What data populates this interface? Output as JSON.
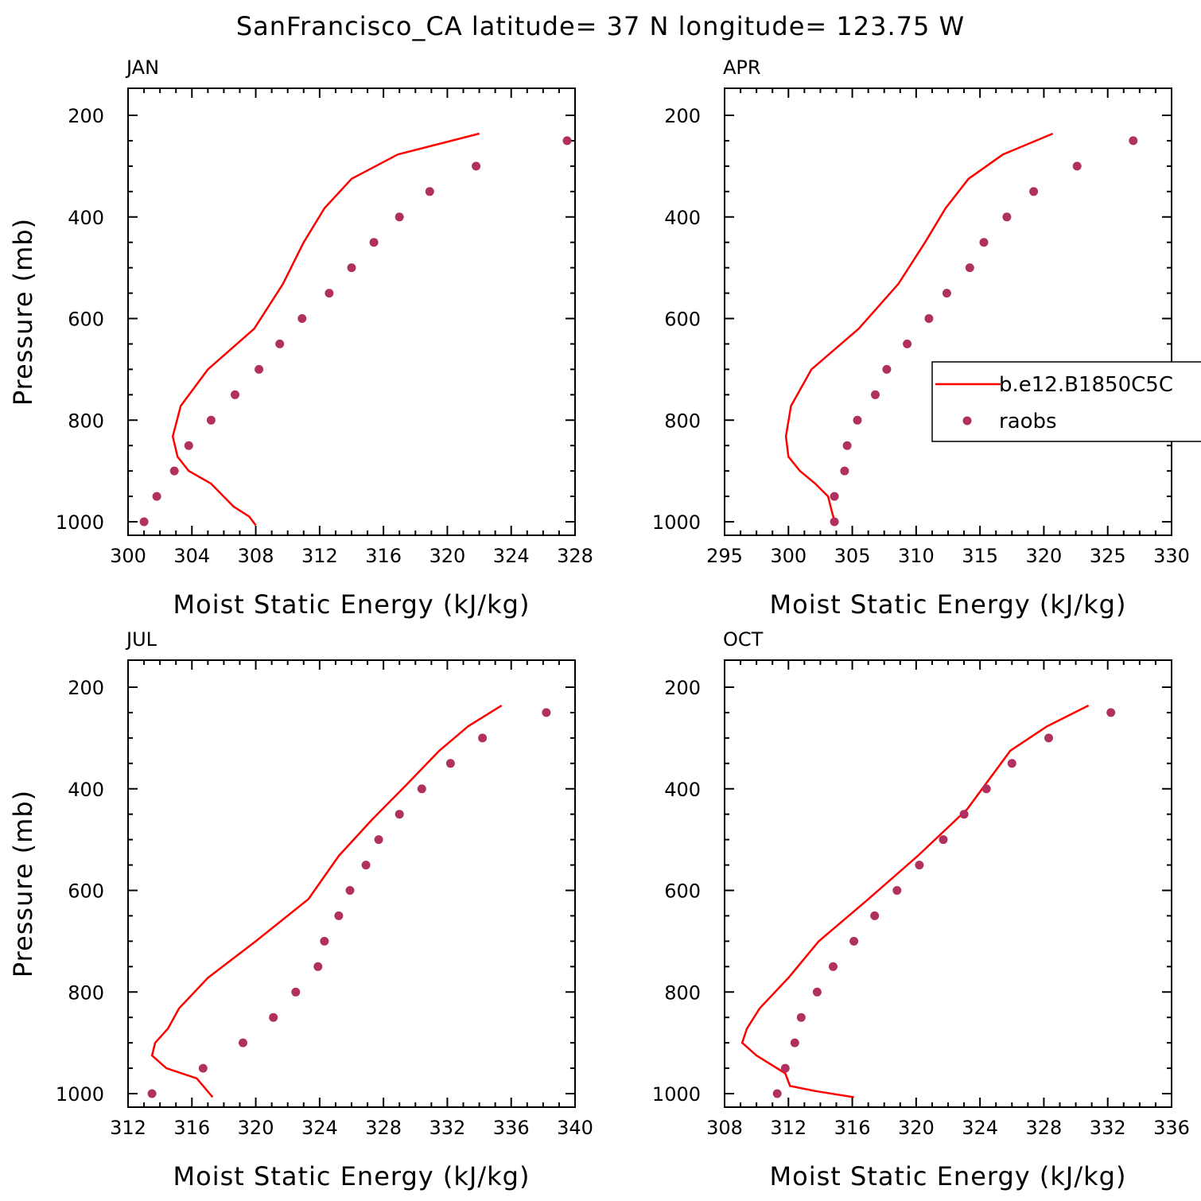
{
  "figure_title": "SanFrancisco_CA  latitude= 37 N longitude= 123.75 W",
  "colors": {
    "model_line": "#ff0000",
    "obs_marker": "#b03060",
    "axes": "#000000"
  },
  "legend": {
    "location": "inside APR panel, right side",
    "entries": [
      {
        "label": "b.e12.B1850C5C",
        "style": "line",
        "color": "#ff0000"
      },
      {
        "label": "raobs",
        "style": "marker",
        "color": "#b03060"
      }
    ]
  },
  "chart_data": [
    {
      "type": "line",
      "panel_label": "JAN",
      "xlabel": "Moist Static Energy (kJ/kg)",
      "ylabel": "Pressure (mb)",
      "xlim": [
        300,
        328
      ],
      "ylim": [
        1000,
        200
      ],
      "y_inverted": true,
      "xticks": [
        "300",
        "304",
        "308",
        "312",
        "316",
        "320",
        "324",
        "328"
      ],
      "yticks": [
        "200",
        "400",
        "600",
        "800",
        "1000"
      ],
      "series": [
        {
          "name": "b.e12.B1850C5C",
          "style": "line",
          "x": [
            322.0,
            316.9,
            314.0,
            312.3,
            311.0,
            309.7,
            307.9,
            305.0,
            303.3,
            302.8,
            303.1,
            303.8,
            305.2,
            306.6,
            307.6,
            308.0
          ],
          "y": [
            236,
            277,
            325,
            383,
            450,
            532,
            620,
            700,
            772,
            832,
            872,
            900,
            925,
            970,
            990,
            1007
          ]
        },
        {
          "name": "raobs",
          "style": "scatter",
          "x": [
            327.5,
            321.8,
            318.9,
            317.0,
            315.4,
            314.0,
            312.6,
            310.9,
            309.5,
            308.2,
            306.7,
            305.2,
            303.8,
            302.9,
            301.8,
            301.0
          ],
          "y": [
            250,
            300,
            350,
            400,
            450,
            500,
            550,
            600,
            650,
            700,
            750,
            800,
            850,
            900,
            950,
            1000
          ]
        }
      ]
    },
    {
      "type": "line",
      "panel_label": "APR",
      "xlabel": "Moist Static Energy (kJ/kg)",
      "ylabel": "",
      "xlim": [
        295,
        330
      ],
      "ylim": [
        1000,
        200
      ],
      "y_inverted": true,
      "xticks": [
        "295",
        "300",
        "305",
        "310",
        "315",
        "320",
        "325",
        "330"
      ],
      "yticks": [
        "200",
        "400",
        "600",
        "800",
        "1000"
      ],
      "series": [
        {
          "name": "b.e12.B1850C5C",
          "style": "line",
          "x": [
            320.7,
            316.8,
            314.1,
            312.3,
            310.7,
            308.6,
            305.5,
            301.8,
            300.2,
            299.8,
            300.0,
            300.9,
            302.1,
            303.1,
            303.4,
            303.7
          ],
          "y": [
            236,
            277,
            325,
            383,
            450,
            532,
            620,
            700,
            772,
            832,
            872,
            900,
            925,
            950,
            980,
            1007
          ]
        },
        {
          "name": "raobs",
          "style": "scatter",
          "x": [
            327.0,
            322.6,
            319.2,
            317.1,
            315.3,
            314.2,
            312.4,
            311.0,
            309.3,
            307.7,
            306.8,
            305.4,
            304.6,
            304.4,
            303.6,
            303.6
          ],
          "y": [
            250,
            300,
            350,
            400,
            450,
            500,
            550,
            600,
            650,
            700,
            750,
            800,
            850,
            900,
            950,
            1000
          ]
        }
      ]
    },
    {
      "type": "line",
      "panel_label": "JUL",
      "xlabel": "Moist Static Energy (kJ/kg)",
      "ylabel": "Pressure (mb)",
      "xlim": [
        312,
        340
      ],
      "ylim": [
        1000,
        200
      ],
      "y_inverted": true,
      "xticks": [
        "312",
        "316",
        "320",
        "324",
        "328",
        "332",
        "336",
        "340"
      ],
      "yticks": [
        "200",
        "400",
        "600",
        "800",
        "1000"
      ],
      "series": [
        {
          "name": "b.e12.B1850C5C",
          "style": "line",
          "x": [
            335.4,
            333.3,
            331.5,
            329.5,
            327.3,
            325.2,
            323.3,
            320.0,
            317.0,
            315.2,
            314.5,
            313.7,
            313.5,
            314.4,
            316.3,
            317.3
          ],
          "y": [
            236,
            277,
            325,
            390,
            460,
            532,
            617,
            700,
            772,
            832,
            872,
            900,
            925,
            950,
            970,
            1007
          ]
        },
        {
          "name": "raobs",
          "style": "scatter",
          "x": [
            338.2,
            334.2,
            332.2,
            330.4,
            329.0,
            327.7,
            326.9,
            325.9,
            325.2,
            324.3,
            323.9,
            322.5,
            321.1,
            319.2,
            316.7,
            313.5
          ],
          "y": [
            250,
            300,
            350,
            400,
            450,
            500,
            550,
            600,
            650,
            700,
            750,
            800,
            850,
            900,
            950,
            1000
          ]
        }
      ]
    },
    {
      "type": "line",
      "panel_label": "OCT",
      "xlabel": "Moist Static Energy (kJ/kg)",
      "ylabel": "",
      "xlim": [
        308,
        336
      ],
      "ylim": [
        1000,
        200
      ],
      "y_inverted": true,
      "xticks": [
        "308",
        "312",
        "316",
        "320",
        "324",
        "328",
        "332",
        "336"
      ],
      "yticks": [
        "200",
        "400",
        "600",
        "800",
        "1000"
      ],
      "series": [
        {
          "name": "b.e12.B1850C5C",
          "style": "line",
          "x": [
            330.8,
            328.2,
            325.9,
            323.2,
            320.1,
            316.9,
            313.9,
            312.0,
            310.2,
            309.4,
            309.1,
            310.0,
            311.8,
            312.1,
            313.7,
            316.1
          ],
          "y": [
            236,
            277,
            325,
            440,
            532,
            620,
            700,
            772,
            832,
            872,
            900,
            925,
            960,
            985,
            995,
            1007
          ]
        },
        {
          "name": "raobs",
          "style": "scatter",
          "x": [
            332.2,
            328.3,
            326.0,
            324.4,
            323.0,
            321.7,
            320.2,
            318.8,
            317.4,
            316.1,
            314.8,
            313.8,
            312.8,
            312.4,
            311.8,
            311.3
          ],
          "y": [
            250,
            300,
            350,
            400,
            450,
            500,
            550,
            600,
            650,
            700,
            750,
            800,
            850,
            900,
            950,
            1000
          ]
        }
      ]
    }
  ]
}
